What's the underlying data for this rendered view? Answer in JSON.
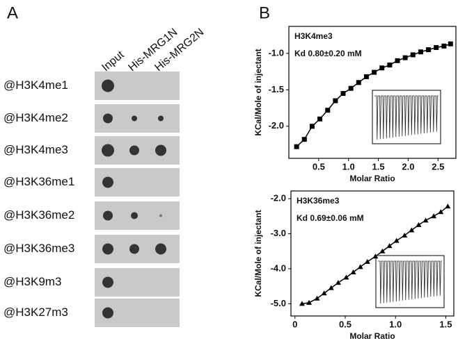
{
  "panel_a": {
    "label": "A",
    "columns": [
      "Input",
      "His-MRG1N",
      "His-MRG2N"
    ],
    "rows": [
      "@H3K4me1",
      "@H3K4me2",
      "@H3K4me3",
      "@H3K36me1",
      "@H3K36me2",
      "@H3K36me3",
      "@H3K9m3",
      "@H3K27m3"
    ]
  },
  "panel_b": {
    "label": "B"
  },
  "chart_data": [
    {
      "type": "scatter",
      "title": "H3K4me3",
      "annotation": "Kd 0.80±0.20 mM",
      "x_label": "Molar Ratio",
      "y_label": "KCal/Mole of injectant",
      "x": [
        0.13,
        0.26,
        0.39,
        0.52,
        0.65,
        0.78,
        0.91,
        1.04,
        1.17,
        1.3,
        1.43,
        1.56,
        1.69,
        1.82,
        1.95,
        2.08,
        2.21,
        2.34,
        2.47,
        2.6,
        2.71
      ],
      "series": [
        {
          "color": "#000000",
          "marker": "square",
          "values": [
            -2.28,
            -2.18,
            -2.0,
            -1.9,
            -1.78,
            -1.65,
            -1.55,
            -1.48,
            -1.4,
            -1.32,
            -1.26,
            -1.2,
            -1.16,
            -1.1,
            -1.06,
            -1.02,
            -0.98,
            -0.95,
            -0.92,
            -0.9,
            -0.87
          ]
        }
      ],
      "xlim": [
        0,
        2.8
      ],
      "ylim": [
        -2.44,
        -0.63
      ],
      "xticks": [
        0.5,
        {
          "value": 1,
          "label": "1.0"
        },
        1.5,
        {
          "value": 2,
          "label": "2.0"
        },
        2.5
      ],
      "yticks": [
        {
          "value": -2,
          "label": "-2.0"
        },
        -1.5,
        {
          "value": -1,
          "label": "-1.0"
        }
      ]
    },
    {
      "type": "scatter",
      "title": "H3K36me3",
      "annotation": "Kd 0.69±0.06 mM",
      "x_label": "Molar Ratio",
      "y_label": "KCal/Mole of injectant",
      "x": [
        0.07,
        0.14,
        0.22,
        0.29,
        0.36,
        0.43,
        0.51,
        0.58,
        0.65,
        0.72,
        0.8,
        0.87,
        0.94,
        1.01,
        1.09,
        1.16,
        1.23,
        1.3,
        1.38,
        1.45,
        1.52
      ],
      "series": [
        {
          "color": "#000000",
          "marker": "triangle",
          "values": [
            -5.0,
            -4.97,
            -4.85,
            -4.7,
            -4.55,
            -4.4,
            -4.25,
            -4.1,
            -3.95,
            -3.8,
            -3.65,
            -3.5,
            -3.35,
            -3.2,
            -3.05,
            -2.9,
            -2.75,
            -2.62,
            -2.5,
            -2.38,
            -2.22
          ]
        }
      ],
      "xlim": [
        -0.04,
        1.58
      ],
      "ylim": [
        -5.35,
        -1.78
      ],
      "xticks": [
        0,
        0.5,
        {
          "value": 1,
          "label": "1.0"
        },
        1.5
      ],
      "yticks": [
        {
          "value": -5,
          "label": "-5.0"
        },
        {
          "value": -4,
          "label": "-4.0"
        },
        {
          "value": -3,
          "label": "-3.0"
        },
        {
          "value": -2,
          "label": "-2.0"
        }
      ]
    }
  ]
}
